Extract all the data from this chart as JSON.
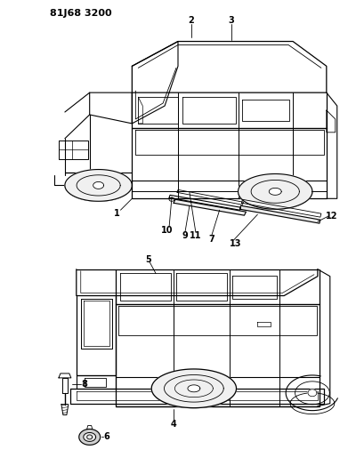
{
  "title": "81J68 3200",
  "bg_color": "#ffffff",
  "lc": "#000000",
  "fig_width": 4.0,
  "fig_height": 5.33,
  "dpi": 100
}
